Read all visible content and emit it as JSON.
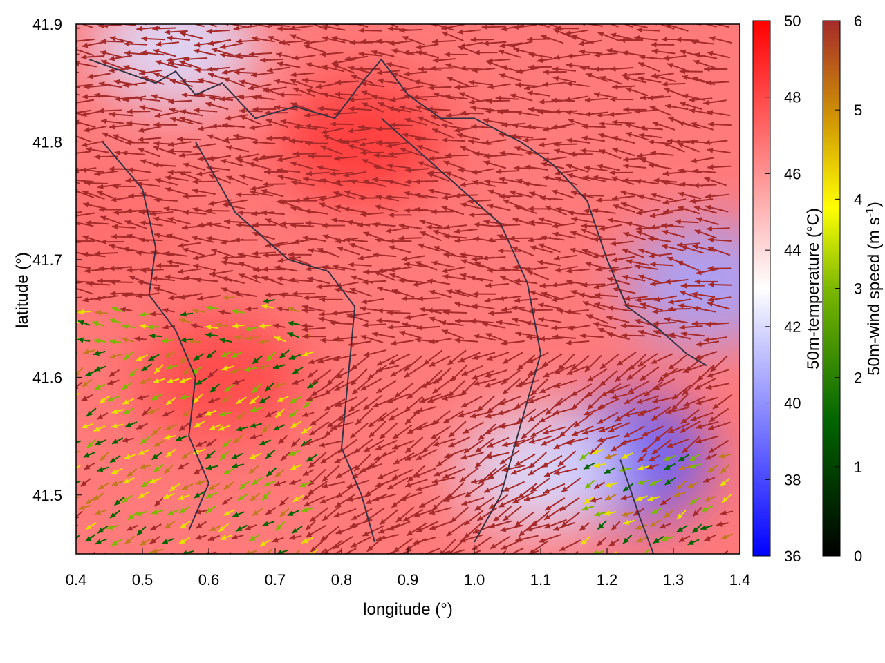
{
  "chart_data": {
    "type": "heatmap",
    "xlabel": "longitude (°)",
    "ylabel": "latitude (°)",
    "xlim": [
      0.4,
      1.4
    ],
    "ylim": [
      41.45,
      41.9
    ],
    "xticks": [
      "0.4",
      "0.5",
      "0.6",
      "0.7",
      "0.8",
      "0.9",
      "1.0",
      "1.1",
      "1.2",
      "1.3",
      "1.4"
    ],
    "yticks": [
      "41.5",
      "41.6",
      "41.7",
      "41.8",
      "41.9"
    ],
    "grid": false,
    "temperature_colorbar": {
      "label": "50m-temperature (°C)",
      "range": [
        36,
        50
      ],
      "ticks": [
        "36",
        "38",
        "40",
        "42",
        "44",
        "46",
        "48",
        "50"
      ],
      "colors": [
        "#0000ff",
        "#ffffff",
        "#ff0000"
      ]
    },
    "wind_colorbar": {
      "label_main": "50m-wind speed (m s",
      "label_sup": "-1",
      "label_end": ")",
      "range": [
        0,
        6
      ],
      "ticks": [
        "0",
        "1",
        "2",
        "3",
        "4",
        "5",
        "6"
      ],
      "colors": [
        "#000000",
        "#006400",
        "#7cb800",
        "#ffff00",
        "#d4a000",
        "#a52a2a"
      ]
    },
    "temperature_regions": [
      {
        "lon": 1.23,
        "lat": 41.53,
        "temp": 38.5
      },
      {
        "lon": 1.35,
        "lat": 41.68,
        "temp": 40.5
      },
      {
        "lon": 1.1,
        "lat": 41.52,
        "temp": 42.0
      },
      {
        "lon": 0.62,
        "lat": 41.6,
        "temp": 48.0
      },
      {
        "lon": 0.83,
        "lat": 41.8,
        "temp": 48.5
      },
      {
        "lon": 0.55,
        "lat": 41.88,
        "temp": 42.0
      },
      {
        "lon": 0.45,
        "lat": 41.72,
        "temp": 47.0
      }
    ],
    "county_boundaries": [
      [
        [
          0.42,
          41.87
        ],
        [
          0.47,
          41.86
        ],
        [
          0.52,
          41.85
        ],
        [
          0.55,
          41.86
        ],
        [
          0.58,
          41.84
        ],
        [
          0.62,
          41.85
        ],
        [
          0.67,
          41.82
        ],
        [
          0.73,
          41.83
        ],
        [
          0.79,
          41.82
        ],
        [
          0.83,
          41.85
        ],
        [
          0.86,
          41.87
        ],
        [
          0.9,
          41.84
        ],
        [
          0.95,
          41.82
        ],
        [
          1.0,
          41.82
        ],
        [
          1.07,
          41.8
        ],
        [
          1.12,
          41.78
        ],
        [
          1.17,
          41.75
        ],
        [
          1.2,
          41.7
        ],
        [
          1.23,
          41.66
        ],
        [
          1.28,
          41.64
        ],
        [
          1.32,
          41.62
        ],
        [
          1.35,
          41.61
        ]
      ],
      [
        [
          0.44,
          41.8
        ],
        [
          0.5,
          41.76
        ],
        [
          0.52,
          41.71
        ],
        [
          0.51,
          41.67
        ],
        [
          0.55,
          41.64
        ],
        [
          0.58,
          41.6
        ],
        [
          0.57,
          41.55
        ],
        [
          0.6,
          41.51
        ],
        [
          0.57,
          41.47
        ]
      ],
      [
        [
          0.58,
          41.8
        ],
        [
          0.64,
          41.74
        ],
        [
          0.72,
          41.7
        ],
        [
          0.78,
          41.69
        ],
        [
          0.82,
          41.66
        ],
        [
          0.81,
          41.6
        ],
        [
          0.8,
          41.54
        ],
        [
          0.83,
          41.5
        ],
        [
          0.85,
          41.46
        ]
      ],
      [
        [
          0.86,
          41.82
        ],
        [
          0.92,
          41.79
        ],
        [
          0.98,
          41.76
        ],
        [
          1.04,
          41.73
        ],
        [
          1.08,
          41.68
        ],
        [
          1.1,
          41.62
        ],
        [
          1.07,
          41.56
        ],
        [
          1.04,
          41.5
        ],
        [
          1.0,
          41.46
        ]
      ],
      [
        [
          1.22,
          41.53
        ],
        [
          1.25,
          41.48
        ],
        [
          1.27,
          41.45
        ]
      ]
    ],
    "wind_field_note": ""
  }
}
